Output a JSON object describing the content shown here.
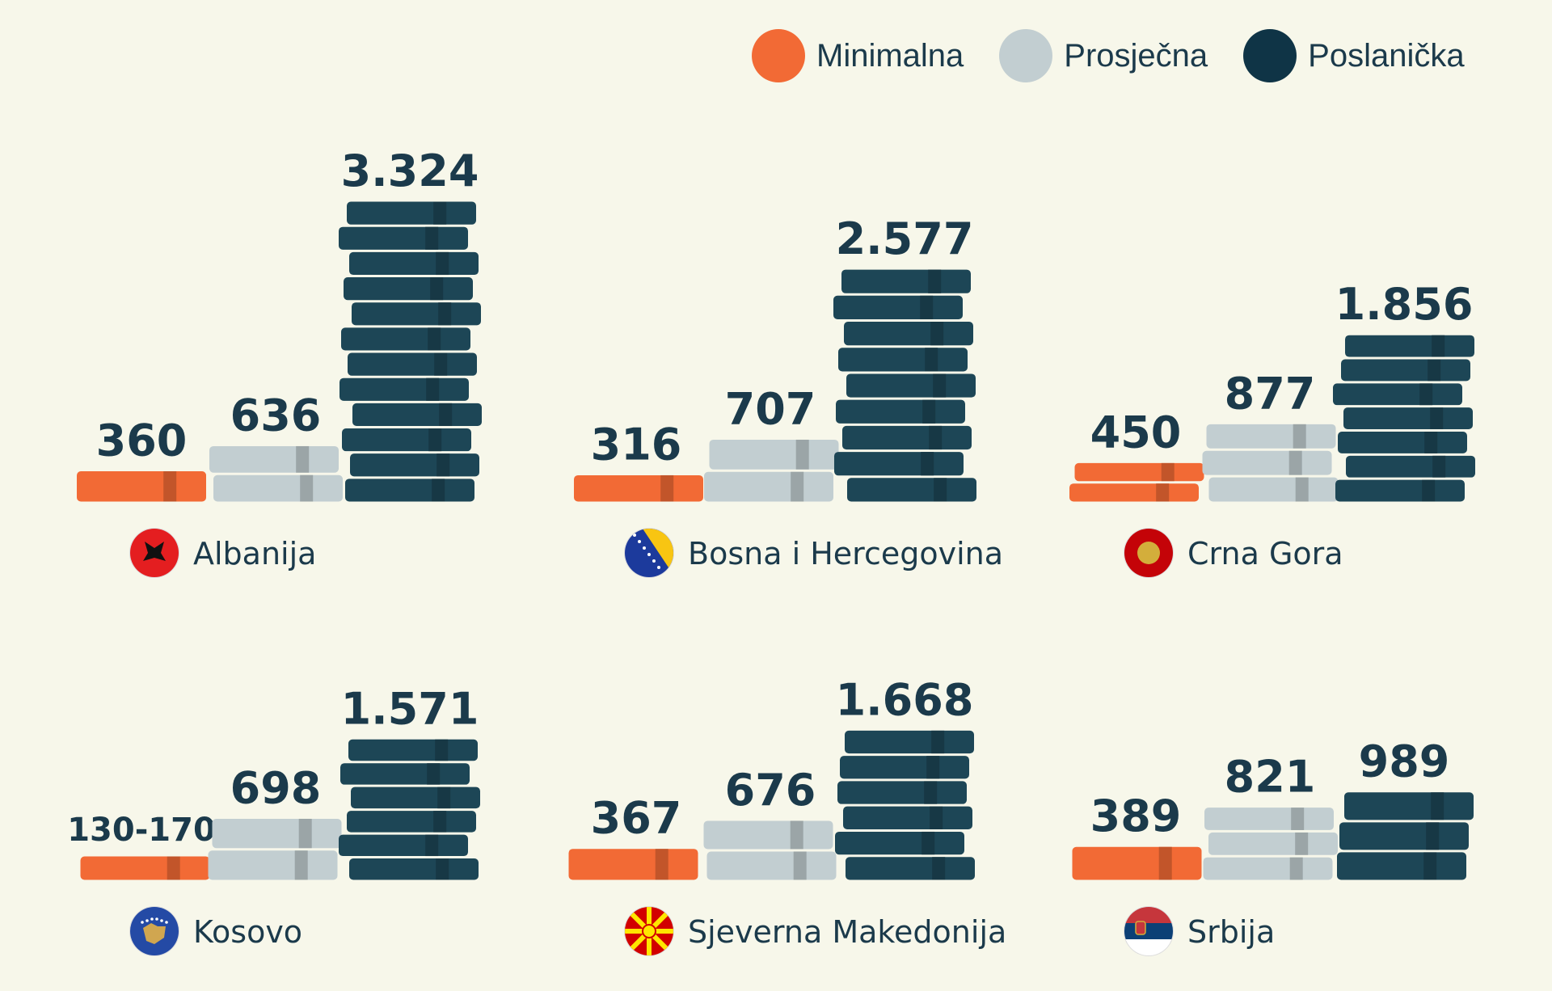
{
  "chart_data": {
    "type": "bar",
    "legend_position": "top-right",
    "series": [
      {
        "name": "Minimalna",
        "color": "#f26a35"
      },
      {
        "name": "Prosječna",
        "color": "#c2ced1"
      },
      {
        "name": "Poslanička",
        "color": "#1d4656"
      }
    ],
    "countries": [
      {
        "name": "Albanija",
        "flag_icon": "albania-flag-icon",
        "labels": [
          "360",
          "636",
          "3.324"
        ],
        "values": [
          360,
          636,
          3324
        ]
      },
      {
        "name": "Bosna i Hercegovina",
        "flag_icon": "bosnia-flag-icon",
        "labels": [
          "316",
          "707",
          "2.577"
        ],
        "values": [
          316,
          707,
          2577
        ]
      },
      {
        "name": "Crna Gora",
        "flag_icon": "montenegro-flag-icon",
        "labels": [
          "450",
          "877",
          "1.856"
        ],
        "values": [
          450,
          877,
          1856
        ]
      },
      {
        "name": "Kosovo",
        "flag_icon": "kosovo-flag-icon",
        "labels": [
          "130-170",
          "698",
          "1.571"
        ],
        "values": [
          150,
          698,
          1571
        ]
      },
      {
        "name": "Sjeverna Makedonija",
        "flag_icon": "north-macedonia-flag-icon",
        "labels": [
          "367",
          "676",
          "1.668"
        ],
        "values": [
          367,
          676,
          1668
        ]
      },
      {
        "name": "Srbija",
        "flag_icon": "serbia-flag-icon",
        "labels": [
          "389",
          "821",
          "989"
        ],
        "values": [
          389,
          821,
          989
        ]
      }
    ]
  }
}
